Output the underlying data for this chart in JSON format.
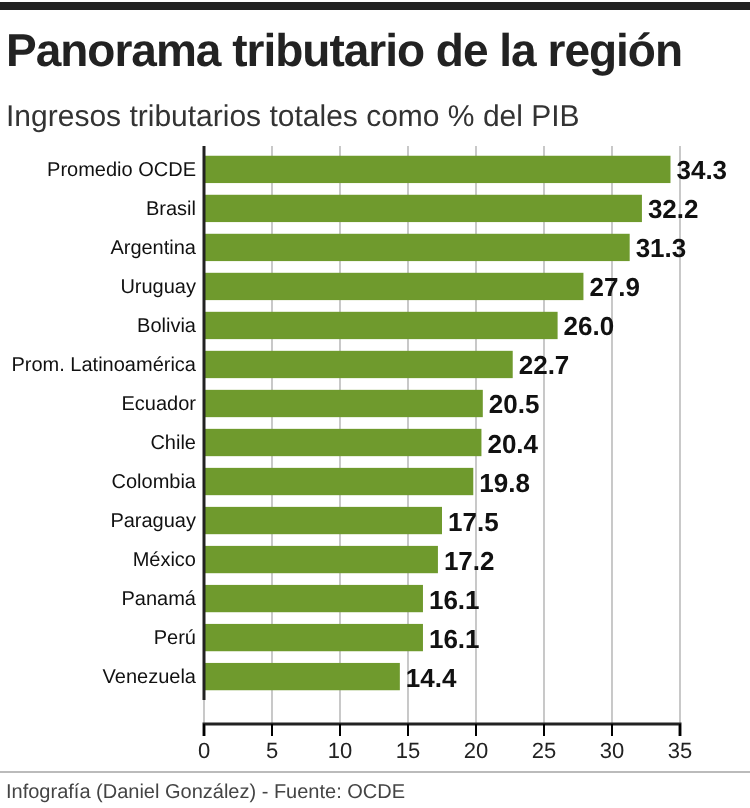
{
  "chart_data": {
    "type": "bar",
    "orientation": "horizontal",
    "title": "Panorama tributario de la región",
    "subtitle": "Ingresos tributarios totales como % del PIB",
    "categories": [
      "Promedio OCDE",
      "Brasil",
      "Argentina",
      "Uruguay",
      "Bolivia",
      "Prom. Latinoamérica",
      "Ecuador",
      "Chile",
      "Colombia",
      "Paraguay",
      "México",
      "Panamá",
      "Perú",
      "Venezuela"
    ],
    "values": [
      34.3,
      32.2,
      31.3,
      27.9,
      26.0,
      22.7,
      20.5,
      20.4,
      19.8,
      17.5,
      17.2,
      16.1,
      16.1,
      14.4
    ],
    "color": "#6f9a2d",
    "xlim": [
      0,
      35
    ],
    "xticks": [
      0,
      5,
      10,
      15,
      20,
      25,
      30,
      35
    ],
    "grid": "x",
    "value_labels": [
      "34.3",
      "32.2",
      "31.3",
      "27.9",
      "26.0",
      "22.7",
      "20.5",
      "20.4",
      "19.8",
      "17.5",
      "17.2",
      "16.1",
      "16.1",
      "14.4"
    ],
    "annotations": [
      "Infografía (Daniel González) - Fuente: OCDE"
    ]
  }
}
